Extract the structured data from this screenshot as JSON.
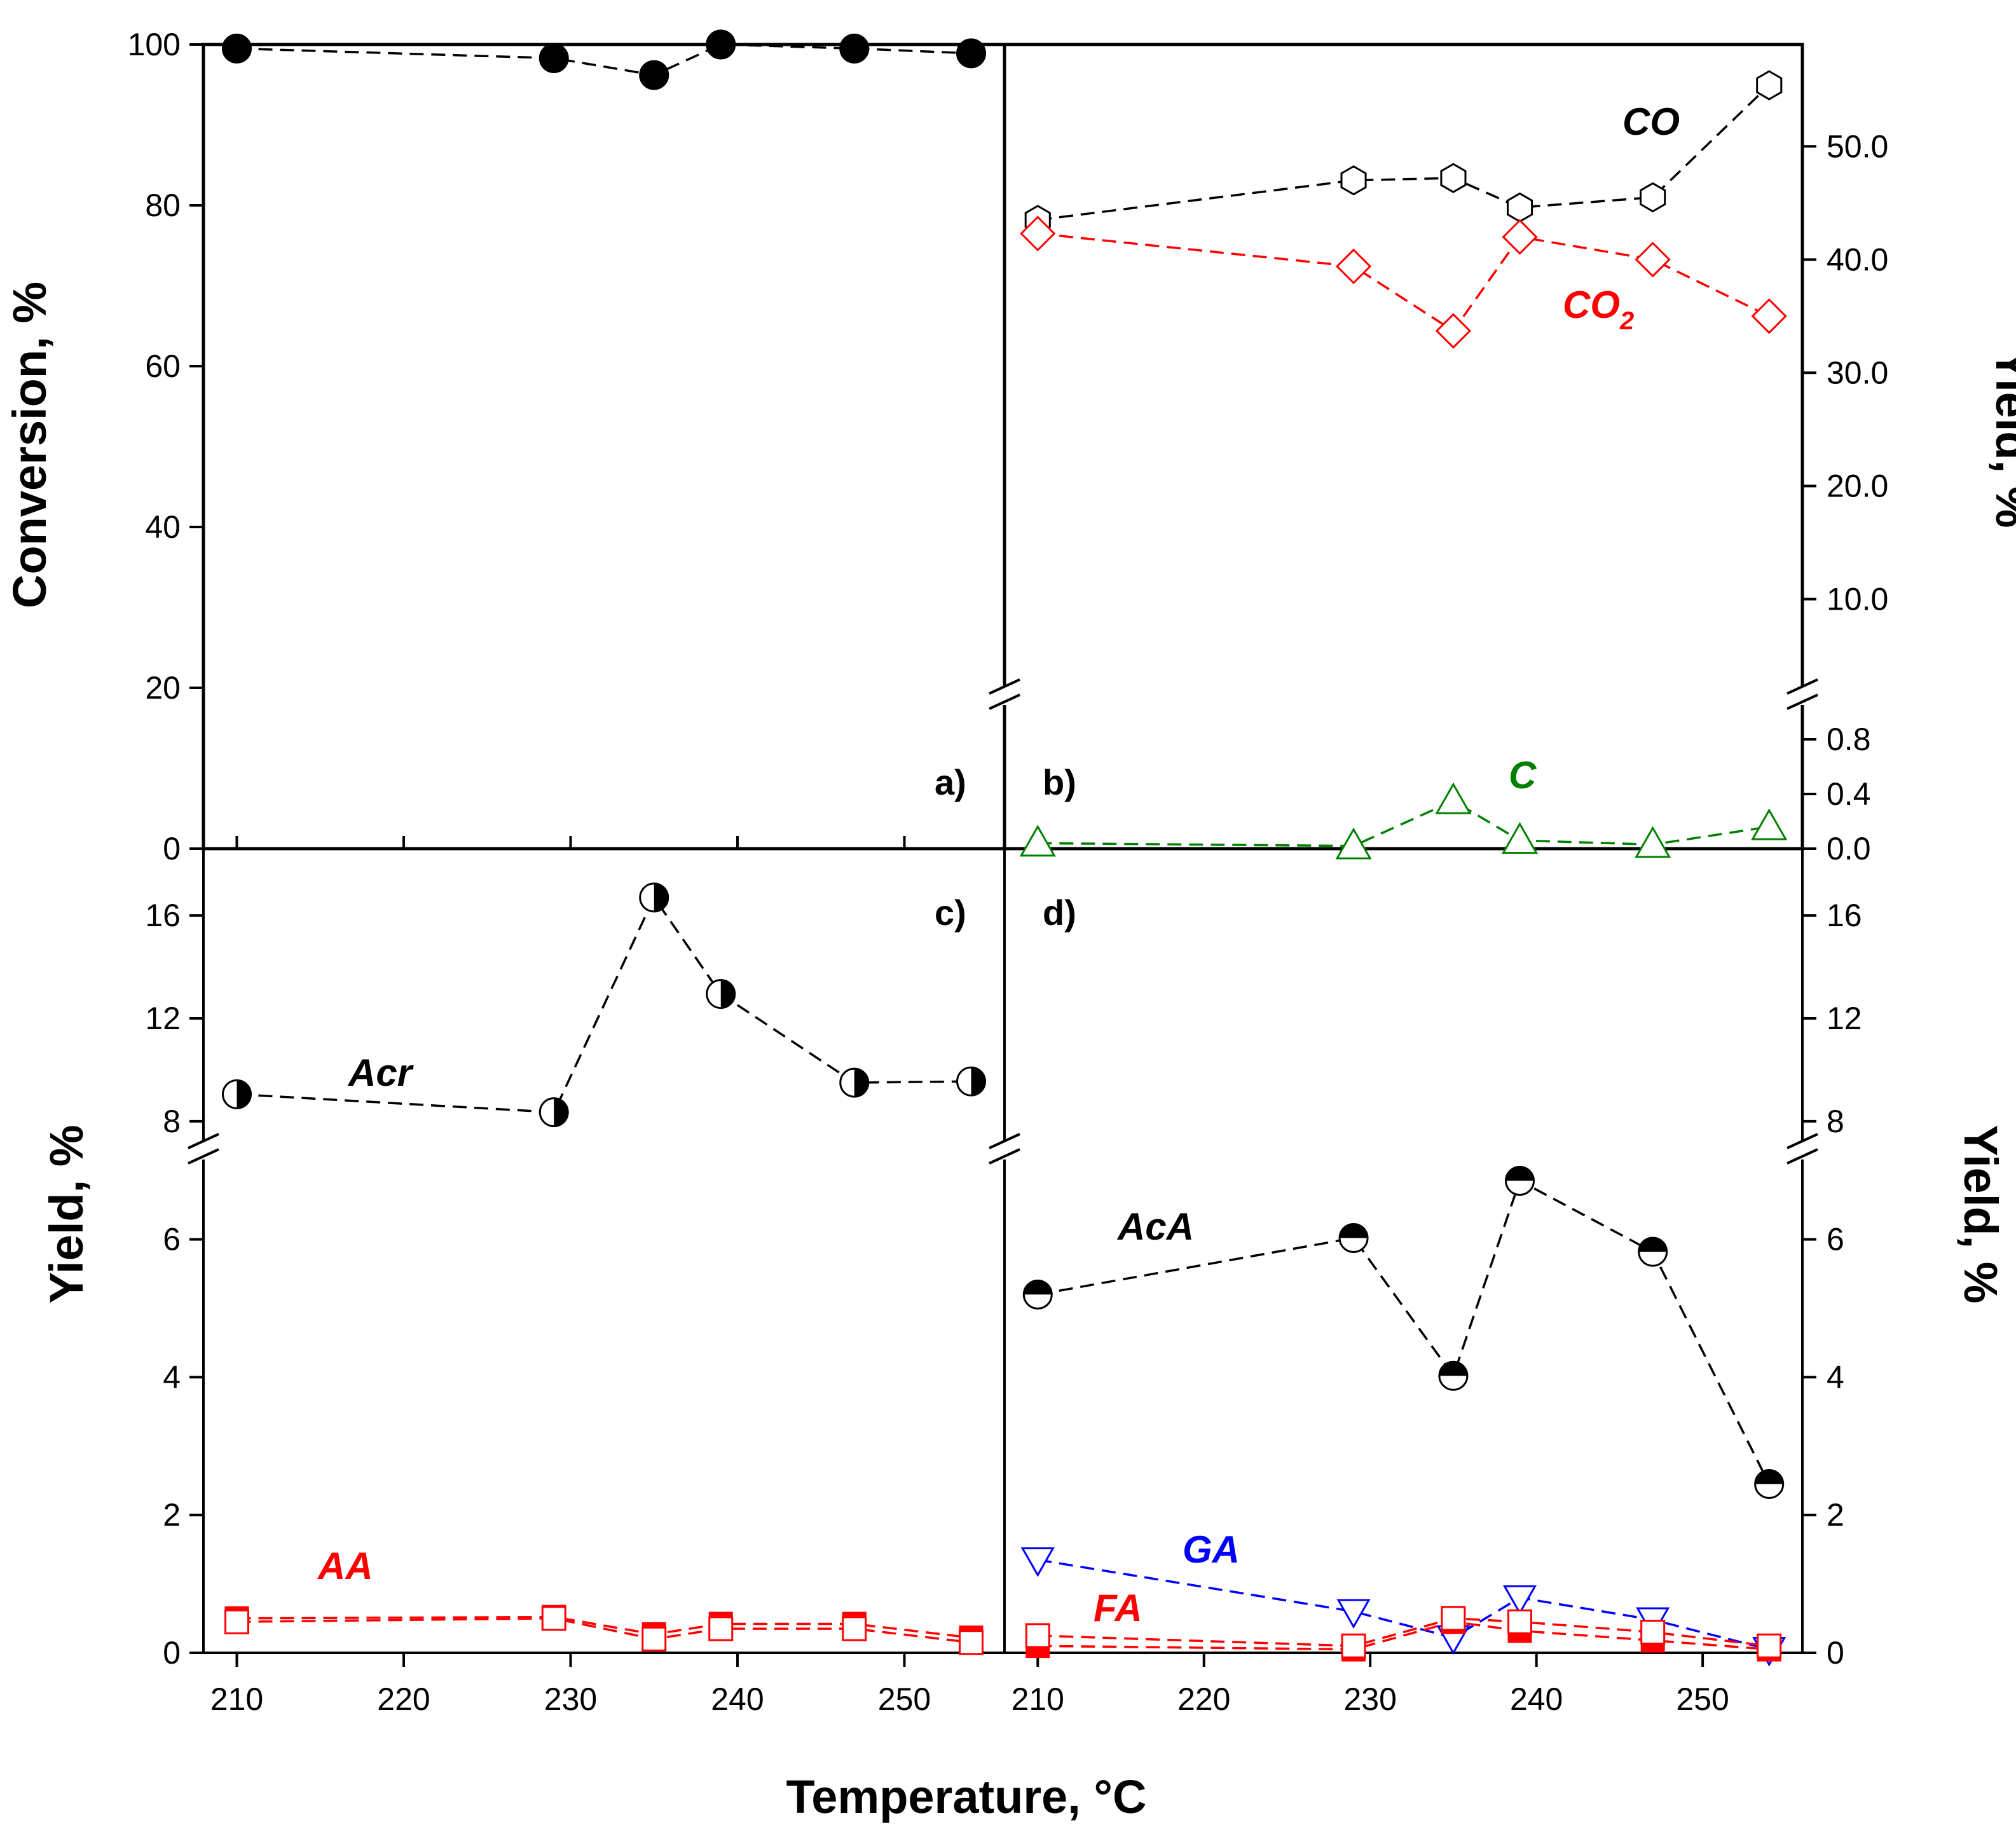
{
  "figure_title": "",
  "x_axis": {
    "title": "Temperature, °C",
    "ticks": [
      "210",
      "220",
      "230",
      "240",
      "250"
    ],
    "tick_values": [
      210,
      220,
      230,
      240,
      250
    ],
    "range": [
      208,
      256
    ]
  },
  "panels": {
    "a": {
      "letter": "a)",
      "y_title": "Conversion, %",
      "y_ticks": [
        "0",
        "20",
        "40",
        "60",
        "80",
        "100"
      ],
      "y_tick_values": [
        0,
        20,
        40,
        60,
        80,
        100
      ],
      "y_range": [
        0,
        100
      ]
    },
    "b": {
      "letter": "b)",
      "y_title": "Yield, %",
      "upper_ticks": [
        "10.0",
        "20.0",
        "30.0",
        "40.0",
        "50.0"
      ],
      "upper_tick_values": [
        10,
        20,
        30,
        40,
        50
      ],
      "upper_range": [
        2,
        59
      ],
      "lower_ticks": [
        "0.0",
        "0.4",
        "0.8"
      ],
      "lower_tick_values": [
        0,
        0.4,
        0.8
      ],
      "lower_range": [
        0,
        1.0
      ]
    },
    "c": {
      "letter": "c)",
      "y_title": "Yield, %",
      "upper_ticks": [
        "8",
        "12",
        "16"
      ],
      "upper_tick_values": [
        8,
        12,
        16
      ],
      "upper_range": [
        7.6,
        18.6
      ],
      "lower_ticks": [
        "0",
        "2",
        "4",
        "6"
      ],
      "lower_tick_values": [
        0,
        2,
        4,
        6
      ],
      "lower_range": [
        0,
        7.15
      ]
    },
    "d": {
      "letter": "d)",
      "y_title": "Yield, %",
      "upper_ticks": [
        "8",
        "12",
        "16"
      ],
      "upper_tick_values": [
        8,
        12,
        16
      ],
      "upper_range": [
        7.6,
        18.6
      ],
      "lower_ticks": [
        "0",
        "2",
        "4",
        "6"
      ],
      "lower_tick_values": [
        0,
        2,
        4,
        6
      ],
      "lower_range": [
        0,
        7.15
      ]
    }
  },
  "series_labels": {
    "co": "CO",
    "co2": "CO",
    "co2_sub": "2",
    "c": "C",
    "acr": "Acr",
    "aa": "AA",
    "aca": "AcA",
    "ga": "GA",
    "fa": "FA"
  },
  "colors": {
    "black": "#000000",
    "red": "#ff0000",
    "green": "#008000",
    "blue": "#0000ff"
  },
  "chart_data": [
    {
      "panel": "a",
      "type": "line",
      "ylabel": "Conversion, %",
      "xlabel": "Temperature, °C",
      "series": [
        {
          "name": "Conversion",
          "marker": "filled-circle",
          "color": "#000000",
          "x": [
            210,
            229,
            235,
            239,
            247,
            254
          ],
          "y": [
            99.5,
            98.3,
            96.2,
            100.0,
            99.5,
            98.9
          ]
        }
      ]
    },
    {
      "panel": "b",
      "type": "line",
      "ylabel": "Yield, %",
      "xlabel": "Temperature, °C",
      "series": [
        {
          "name": "CO",
          "marker": "open-hexagon",
          "color": "#000000",
          "axis": "upper",
          "x": [
            210,
            229,
            235,
            239,
            247,
            254
          ],
          "y": [
            43.5,
            47.0,
            47.2,
            44.6,
            45.5,
            55.4
          ]
        },
        {
          "name": "CO2",
          "marker": "open-diamond",
          "color": "#ff0000",
          "axis": "upper",
          "x": [
            210,
            229,
            235,
            239,
            247,
            254
          ],
          "y": [
            42.3,
            39.4,
            33.7,
            42.0,
            40.0,
            35.0
          ]
        },
        {
          "name": "C",
          "marker": "open-triangle-up",
          "color": "#008000",
          "axis": "lower",
          "x": [
            210,
            229,
            235,
            239,
            247,
            254
          ],
          "y": [
            0.04,
            0.02,
            0.35,
            0.06,
            0.03,
            0.16
          ]
        }
      ]
    },
    {
      "panel": "c",
      "type": "line",
      "ylabel": "Yield, %",
      "xlabel": "Temperature, °C",
      "series": [
        {
          "name": "Acr",
          "marker": "half-filled-circle-right",
          "color": "#000000",
          "axis": "upper",
          "x": [
            210,
            229,
            235,
            239,
            247,
            254
          ],
          "y": [
            9.05,
            8.35,
            16.7,
            12.95,
            9.5,
            9.55
          ]
        },
        {
          "name": "AA (filled)",
          "marker": "filled-square",
          "color": "#ff0000",
          "axis": "lower",
          "x": [
            210,
            229,
            235,
            239,
            247,
            254
          ],
          "y": [
            0.5,
            0.52,
            0.27,
            0.42,
            0.42,
            0.22
          ]
        },
        {
          "name": "AA (open)",
          "marker": "open-square",
          "color": "#ff0000",
          "axis": "lower",
          "x": [
            210,
            229,
            235,
            239,
            247,
            254
          ],
          "y": [
            0.45,
            0.5,
            0.2,
            0.35,
            0.35,
            0.15
          ]
        }
      ]
    },
    {
      "panel": "d",
      "type": "line",
      "ylabel": "Yield, %",
      "xlabel": "Temperature, °C",
      "series": [
        {
          "name": "AcA",
          "marker": "half-filled-circle-top",
          "color": "#000000",
          "axis": "lower",
          "x": [
            210,
            229,
            235,
            239,
            247,
            254
          ],
          "y": [
            5.2,
            6.02,
            4.02,
            6.85,
            5.82,
            2.45
          ]
        },
        {
          "name": "GA",
          "marker": "open-triangle-down",
          "color": "#0000ff",
          "axis": "lower",
          "x": [
            210,
            229,
            235,
            239,
            247,
            254
          ],
          "y": [
            1.35,
            0.6,
            0.22,
            0.8,
            0.48,
            0.05
          ]
        },
        {
          "name": "FA (filled)",
          "marker": "filled-square",
          "color": "#ff0000",
          "axis": "lower",
          "x": [
            210,
            229,
            235,
            239,
            247,
            254
          ],
          "y": [
            0.1,
            0.05,
            0.45,
            0.32,
            0.18,
            0.05
          ]
        },
        {
          "name": "FA (open)",
          "marker": "open-square",
          "color": "#ff0000",
          "axis": "lower",
          "x": [
            210,
            229,
            235,
            239,
            247,
            254
          ],
          "y": [
            0.25,
            0.1,
            0.5,
            0.45,
            0.3,
            0.1
          ]
        }
      ]
    }
  ]
}
